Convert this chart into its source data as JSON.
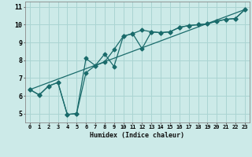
{
  "xlabel": "Humidex (Indice chaleur)",
  "background_color": "#cceae8",
  "grid_color": "#aad4d2",
  "line_color": "#1a6b6b",
  "xlim": [
    -0.5,
    23.5
  ],
  "ylim": [
    4.5,
    11.3
  ],
  "yticks": [
    5,
    6,
    7,
    8,
    9,
    10,
    11
  ],
  "xticks": [
    0,
    1,
    2,
    3,
    4,
    5,
    6,
    7,
    8,
    9,
    10,
    11,
    12,
    13,
    14,
    15,
    16,
    17,
    18,
    19,
    20,
    21,
    22,
    23
  ],
  "series1_x": [
    0,
    1,
    2,
    3,
    4,
    5,
    6,
    7,
    8,
    9,
    10,
    11,
    12,
    13,
    14,
    15,
    16,
    17,
    18,
    19,
    20,
    21,
    22,
    23
  ],
  "series1_y": [
    6.35,
    6.05,
    6.55,
    6.75,
    4.95,
    5.0,
    7.3,
    7.7,
    7.9,
    8.6,
    9.35,
    9.5,
    9.7,
    9.6,
    9.55,
    9.6,
    9.85,
    9.95,
    10.0,
    10.05,
    10.2,
    10.3,
    10.35,
    10.85
  ],
  "series2_x": [
    0,
    1,
    2,
    3,
    4,
    5,
    6,
    7,
    8,
    9,
    10,
    11,
    12,
    13,
    14,
    15,
    16,
    17,
    18,
    19,
    20,
    21,
    22,
    23
  ],
  "series2_y": [
    6.35,
    6.05,
    6.55,
    6.75,
    4.95,
    5.0,
    8.1,
    7.7,
    8.35,
    7.65,
    9.35,
    9.5,
    8.65,
    9.6,
    9.55,
    9.6,
    9.85,
    9.95,
    10.0,
    10.05,
    10.2,
    10.3,
    10.35,
    10.85
  ],
  "series3_x": [
    0,
    23
  ],
  "series3_y": [
    6.35,
    10.85
  ],
  "marker_size": 2.5,
  "line_width": 0.9,
  "xlabel_fontsize": 6,
  "tick_fontsize": 5
}
